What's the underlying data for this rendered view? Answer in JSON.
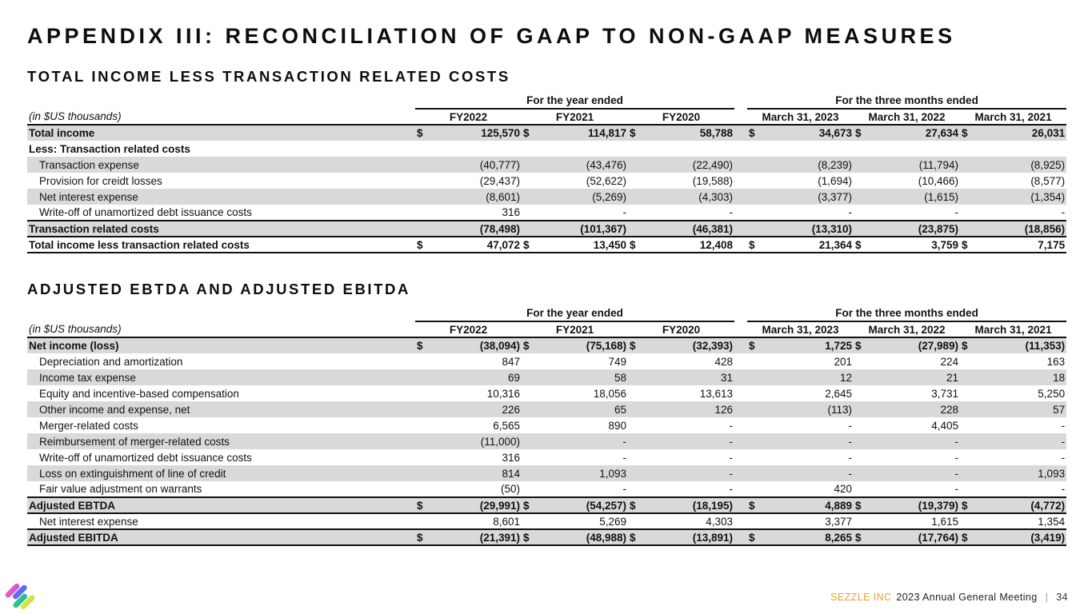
{
  "slide": {
    "title": "APPENDIX III: RECONCILIATION OF GAAP TO NON-GAAP MEASURES",
    "footer": {
      "brand": "SEZZLE INC",
      "event": "2023 Annual General Meeting",
      "separator": "|",
      "page": "34"
    }
  },
  "currency_symbol": "$",
  "colors": {
    "row_shade": "#d9d9d9",
    "brand_orange": "#e8a13c",
    "logo_pink": "#ff5ca8",
    "logo_purple": "#6a5cf0",
    "logo_green": "#2fd08c",
    "logo_yellow": "#f4e04a"
  },
  "tables": [
    {
      "heading": "TOTAL INCOME LESS TRANSACTION RELATED COSTS",
      "units_label": "(in $US thousands)",
      "group_headers": [
        "For the year ended",
        "For the three months ended"
      ],
      "columns": [
        "FY2022",
        "FY2021",
        "FY2020",
        "March 31, 2023",
        "March 31, 2022",
        "March 31, 2021"
      ],
      "rows": [
        {
          "label": "Total income",
          "bold": true,
          "shaded": true,
          "dollar": true,
          "values": [
            "125,570",
            "114,817",
            "58,788",
            "34,673",
            "27,634",
            "26,031"
          ]
        },
        {
          "label": "Less: Transaction related costs",
          "bold": true,
          "shaded": false,
          "dollar": false,
          "values": [
            "",
            "",
            "",
            "",
            "",
            ""
          ]
        },
        {
          "label": "Transaction expense",
          "indent": true,
          "shaded": true,
          "values": [
            "(40,777)",
            "(43,476)",
            "(22,490)",
            "(8,239)",
            "(11,794)",
            "(8,925)"
          ]
        },
        {
          "label": "Provision for creidt losses",
          "indent": true,
          "shaded": false,
          "values": [
            "(29,437)",
            "(52,622)",
            "(19,588)",
            "(1,694)",
            "(10,466)",
            "(8,577)"
          ]
        },
        {
          "label": "Net interest expense",
          "indent": true,
          "shaded": true,
          "values": [
            "(8,601)",
            "(5,269)",
            "(4,303)",
            "(3,377)",
            "(1,615)",
            "(1,354)"
          ]
        },
        {
          "label": "Write-off of unamortized debt issuance costs",
          "indent": true,
          "shaded": false,
          "values": [
            "316",
            "-",
            "-",
            "-",
            "-",
            "-"
          ]
        },
        {
          "label": "Transaction related costs",
          "bold": true,
          "shaded": true,
          "rule": "subtotal",
          "values": [
            "(78,498)",
            "(101,367)",
            "(46,381)",
            "(13,310)",
            "(23,875)",
            "(18,856)"
          ]
        },
        {
          "label": "Total income less transaction related costs",
          "bold": true,
          "shaded": false,
          "rule": "grand",
          "dollar": true,
          "values": [
            "47,072",
            "13,450",
            "12,408",
            "21,364",
            "3,759",
            "7,175"
          ]
        }
      ]
    },
    {
      "heading": "ADJUSTED EBTDA AND ADJUSTED EBITDA",
      "units_label": "(in $US thousands)",
      "group_headers": [
        "For the year ended",
        "For the three months ended"
      ],
      "columns": [
        "FY2022",
        "FY2021",
        "FY2020",
        "March 31, 2023",
        "March 31, 2022",
        "March 31, 2021"
      ],
      "rows": [
        {
          "label": "Net income (loss)",
          "bold": true,
          "shaded": true,
          "dollar": true,
          "values": [
            "(38,094)",
            "(75,168)",
            "(32,393)",
            "1,725",
            "(27,989)",
            "(11,353)"
          ]
        },
        {
          "label": "Depreciation and amortization",
          "indent": true,
          "shaded": false,
          "values": [
            "847",
            "749",
            "428",
            "201",
            "224",
            "163"
          ]
        },
        {
          "label": "Income tax expense",
          "indent": true,
          "shaded": true,
          "values": [
            "69",
            "58",
            "31",
            "12",
            "21",
            "18"
          ]
        },
        {
          "label": "Equity and incentive-based compensation",
          "indent": true,
          "shaded": false,
          "values": [
            "10,316",
            "18,056",
            "13,613",
            "2,645",
            "3,731",
            "5,250"
          ]
        },
        {
          "label": "Other income and expense, net",
          "indent": true,
          "shaded": true,
          "values": [
            "226",
            "65",
            "126",
            "(113)",
            "228",
            "57"
          ]
        },
        {
          "label": "Merger-related costs",
          "indent": true,
          "shaded": false,
          "values": [
            "6,565",
            "890",
            "-",
            "-",
            "4,405",
            "-"
          ]
        },
        {
          "label": "Reimbursement of merger-related costs",
          "indent": true,
          "shaded": true,
          "values": [
            "(11,000)",
            "-",
            "-",
            "-",
            "-",
            "-"
          ]
        },
        {
          "label": "Write-off of unamortized debt issuance costs",
          "indent": true,
          "shaded": false,
          "values": [
            "316",
            "-",
            "-",
            "-",
            "-",
            "-"
          ]
        },
        {
          "label": "Loss on extinguishment of line of credit",
          "indent": true,
          "shaded": true,
          "values": [
            "814",
            "1,093",
            "-",
            "-",
            "-",
            "1,093"
          ]
        },
        {
          "label": "Fair value adjustment on warrants",
          "indent": true,
          "shaded": false,
          "values": [
            "(50)",
            "-",
            "-",
            "420",
            "-",
            "-"
          ]
        },
        {
          "label": "Adjusted EBTDA",
          "bold": true,
          "shaded": true,
          "rule": "subtotal",
          "dollar": true,
          "values": [
            "(29,991)",
            "(54,257)",
            "(18,195)",
            "4,889",
            "(19,379)",
            "(4,772)"
          ]
        },
        {
          "label": "Net interest expense",
          "indent": true,
          "shaded": false,
          "values": [
            "8,601",
            "5,269",
            "4,303",
            "3,377",
            "1,615",
            "1,354"
          ]
        },
        {
          "label": "Adjusted EBITDA",
          "bold": true,
          "shaded": true,
          "rule": "grand",
          "dollar": true,
          "values": [
            "(21,391)",
            "(48,988)",
            "(13,891)",
            "8,265",
            "(17,764)",
            "(3,419)"
          ]
        }
      ]
    }
  ]
}
